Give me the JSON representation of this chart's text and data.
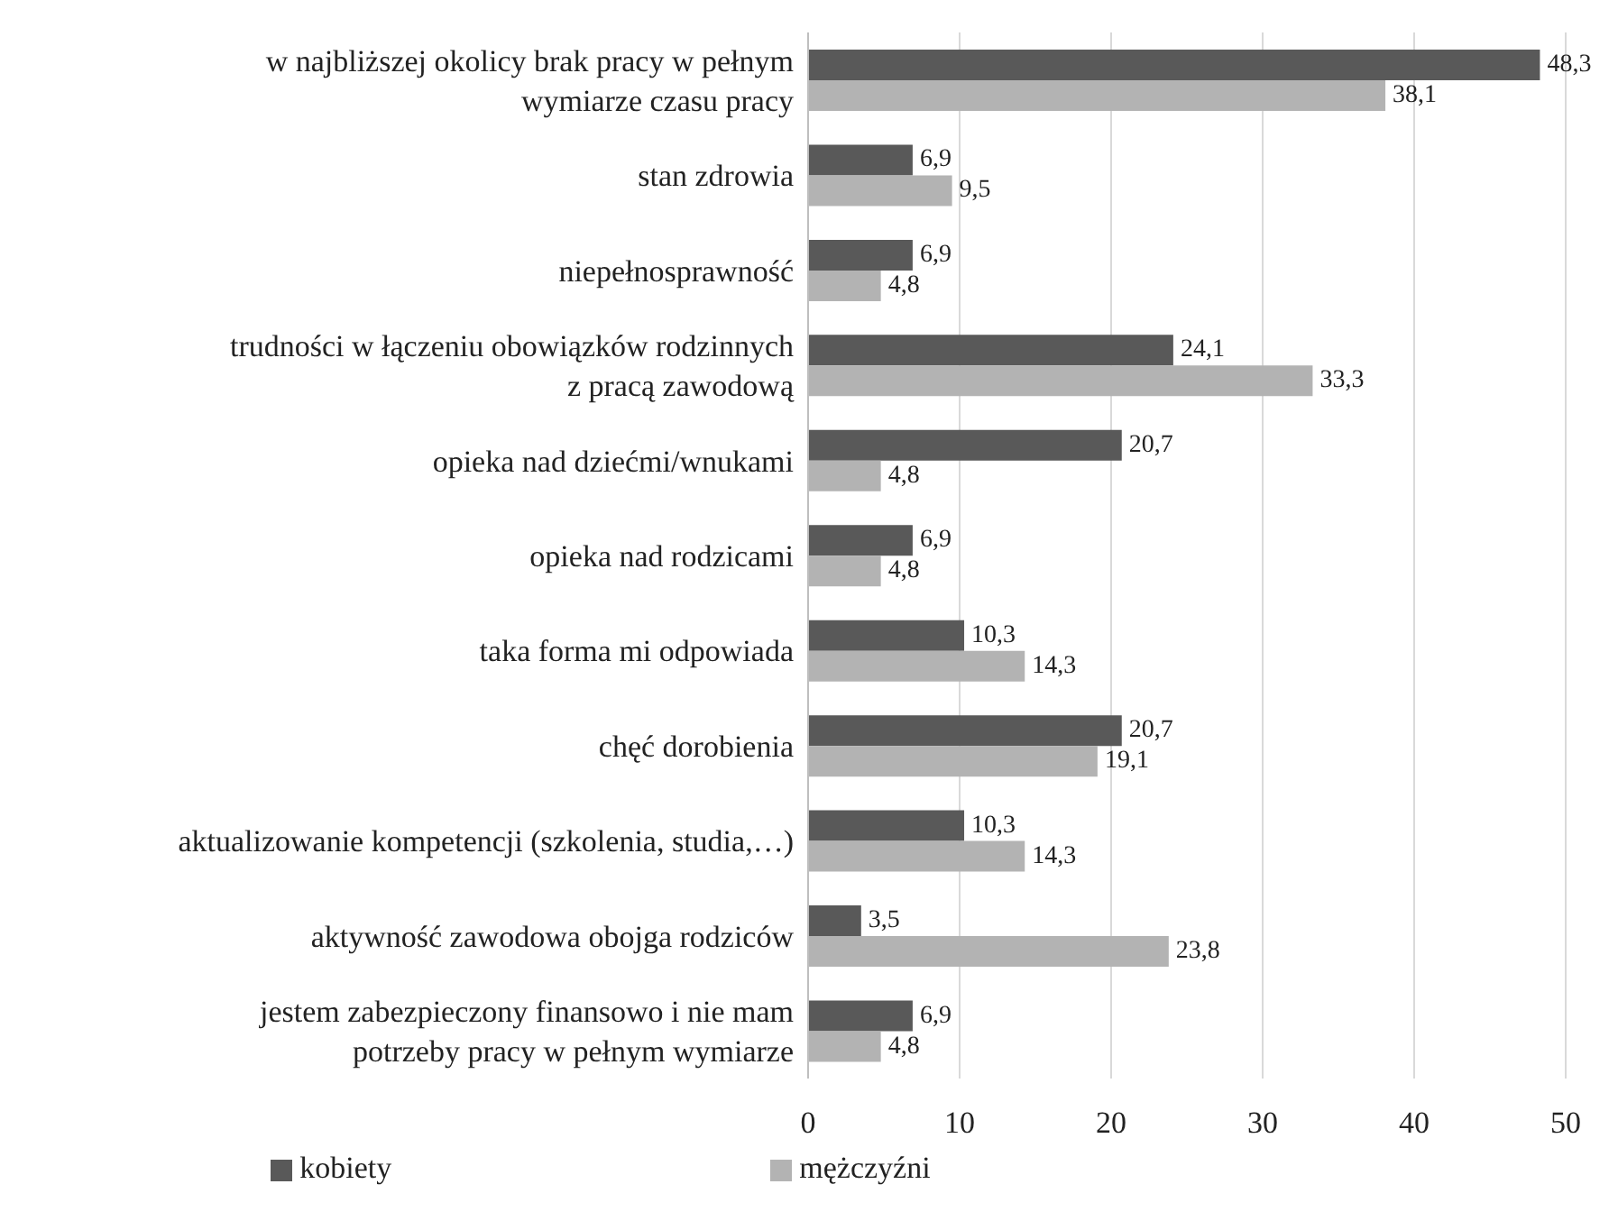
{
  "chart_data": {
    "type": "bar",
    "orientation": "horizontal",
    "categories": [
      "w najbliższej okolicy brak pracy w pełnym wymiarze czasu pracy",
      "stan zdrowia",
      "niepełnosprawność",
      "trudności w łączeniu obowiązków rodzinnych z pracą zawodową",
      "opieka nad dziećmi/wnukami",
      "opieka nad rodzicami",
      "taka forma mi odpowiada",
      "chęć dorobienia",
      "aktualizowanie kompetencji (szkolenia, studia,…)",
      "aktywność zawodowa obojga rodziców",
      "jestem zabezpieczony finansowo i nie mam potrzeby pracy w pełnym wymiarze"
    ],
    "series": [
      {
        "name": "kobiety",
        "color": "#595959",
        "values": [
          48.3,
          6.9,
          6.9,
          24.1,
          20.7,
          6.9,
          10.3,
          20.7,
          10.3,
          3.5,
          6.9
        ],
        "value_labels": [
          "48,3",
          "6,9",
          "6,9",
          "24,1",
          "20,7",
          "6,9",
          "10,3",
          "20,7",
          "10,3",
          "3,5",
          "6,9"
        ]
      },
      {
        "name": "mężczyźni",
        "color": "#b3b3b3",
        "values": [
          38.1,
          9.5,
          4.8,
          33.3,
          4.8,
          4.8,
          14.3,
          19.1,
          14.3,
          23.8,
          4.8
        ],
        "value_labels": [
          "38,1",
          "9,5",
          "4,8",
          "33,3",
          "4,8",
          "4,8",
          "14,3",
          "19,1",
          "14,3",
          "23,8",
          "4,8"
        ]
      }
    ],
    "xlim": [
      0,
      50
    ],
    "xticks": [
      0,
      10,
      20,
      30,
      40,
      50
    ],
    "grid": "x",
    "legend": "bottom"
  }
}
